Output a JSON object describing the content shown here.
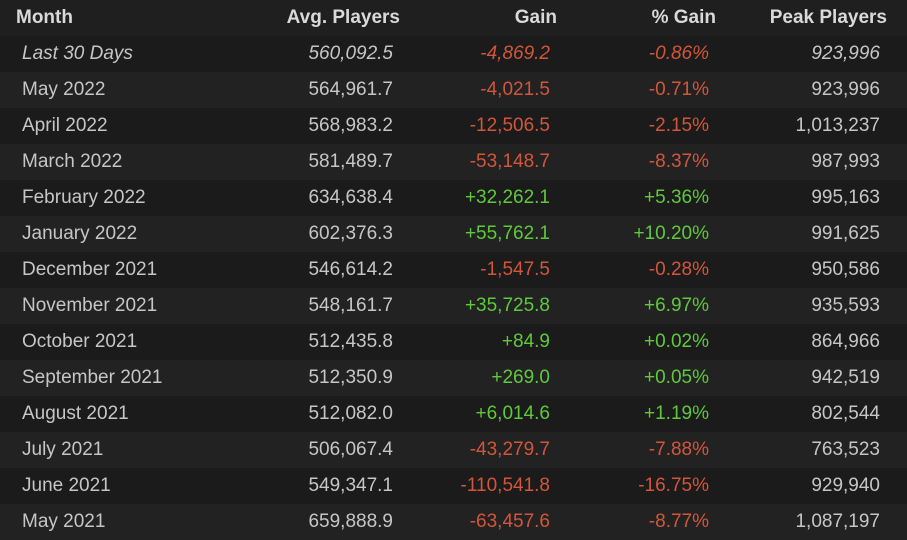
{
  "table": {
    "header": [
      "Month",
      "Avg. Players",
      "Gain",
      "% Gain",
      "Peak Players"
    ],
    "rows": [
      [
        "Last 30 Days",
        "560,092.5",
        "-4,869.2",
        "-0.86%",
        "923,996"
      ],
      [
        "May 2022",
        "564,961.7",
        "-4,021.5",
        "-0.71%",
        "923,996"
      ],
      [
        "April 2022",
        "568,983.2",
        "-12,506.5",
        "-2.15%",
        "1,013,237"
      ],
      [
        "March 2022",
        "581,489.7",
        "-53,148.7",
        "-8.37%",
        "987,993"
      ],
      [
        "February 2022",
        "634,638.4",
        "+32,262.1",
        "+5.36%",
        "995,163"
      ],
      [
        "January 2022",
        "602,376.3",
        "+55,762.1",
        "+10.20%",
        "991,625"
      ],
      [
        "December 2021",
        "546,614.2",
        "-1,547.5",
        "-0.28%",
        "950,586"
      ],
      [
        "November 2021",
        "548,161.7",
        "+35,725.8",
        "+6.97%",
        "935,593"
      ],
      [
        "October 2021",
        "512,435.8",
        "+84.9",
        "+0.02%",
        "864,966"
      ],
      [
        "September 2021",
        "512,350.9",
        "+269.0",
        "+0.05%",
        "942,519"
      ],
      [
        "August 2021",
        "512,082.0",
        "+6,014.6",
        "+1.19%",
        "802,544"
      ],
      [
        "July 2021",
        "506,067.4",
        "-43,279.7",
        "-7.88%",
        "763,523"
      ],
      [
        "June 2021",
        "549,347.1",
        "-110,541.8",
        "-16.75%",
        "929,940"
      ],
      [
        "May 2021",
        "659,888.9",
        "-63,457.6",
        "-8.77%",
        "1,087,197"
      ]
    ]
  }
}
